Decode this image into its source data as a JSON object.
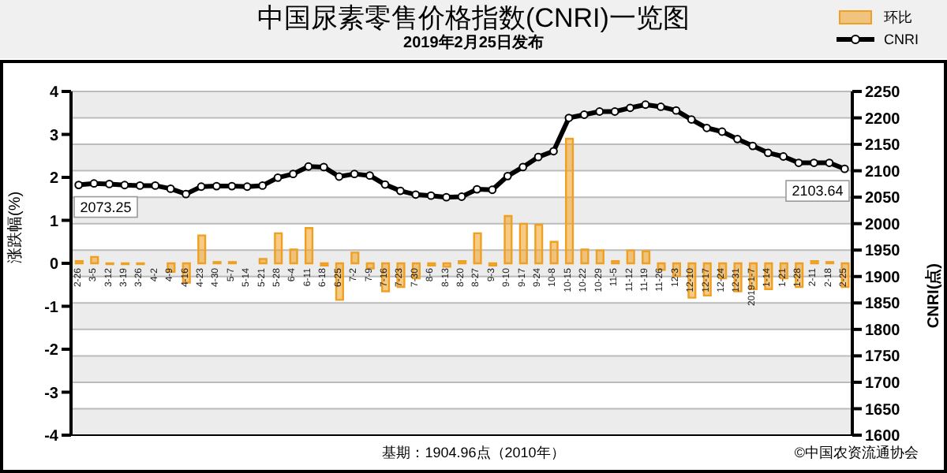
{
  "chart_data": {
    "type": "bar",
    "title": "中国尿素零售价格指数(CNRI)一览图",
    "subtitle": "2019年2月25日发布",
    "ylabel": "涨跌幅(%)",
    "y2label": "CNRI(点)",
    "categories": [
      "2-26",
      "3-5",
      "3-12",
      "3-19",
      "3-26",
      "4-2",
      "4-9",
      "4-16",
      "4-23",
      "4-30",
      "5-7",
      "5-14",
      "5-21",
      "5-28",
      "6-4",
      "6-11",
      "6-18",
      "6-25",
      "7-2",
      "7-9",
      "7-16",
      "7-23",
      "7-30",
      "8-6",
      "8-13",
      "8-20",
      "8-27",
      "9-3",
      "9-10",
      "9-17",
      "9-24",
      "10-8",
      "10-15",
      "10-22",
      "10-29",
      "11-5",
      "11-12",
      "11-19",
      "11-26",
      "12-3",
      "12-10",
      "12-17",
      "12-24",
      "12-31",
      "2019-1-7",
      "1-14",
      "1-21",
      "1-28",
      "2-11",
      "2-18",
      "2-25"
    ],
    "series": [
      {
        "name": "环比",
        "color": "#f0a020",
        "values": [
          0.05,
          0.15,
          -0.02,
          -0.02,
          -0.02,
          0,
          -0.2,
          -0.45,
          0.65,
          0.03,
          0.03,
          0,
          0.1,
          0.7,
          0.32,
          0.82,
          -0.05,
          -0.85,
          0.25,
          -0.12,
          -0.65,
          -0.55,
          -0.35,
          -0.05,
          -0.08,
          0.05,
          0.7,
          -0.05,
          1.1,
          0.92,
          0.9,
          0.5,
          2.9,
          0.32,
          0.3,
          0.05,
          0.3,
          0.28,
          -0.15,
          -0.3,
          -0.8,
          -0.75,
          -0.35,
          -0.65,
          -0.6,
          -0.6,
          -0.35,
          -0.55,
          0.05,
          0.03,
          -0.55
        ]
      },
      {
        "name": "CNRI",
        "type": "line",
        "axis": "y2",
        "color": "#000000",
        "values": [
          2073.25,
          2076,
          2075,
          2073,
          2072,
          2072,
          2066,
          2056,
          2070,
          2071,
          2071,
          2070,
          2072,
          2087,
          2094,
          2108,
          2107,
          2089,
          2094,
          2091,
          2074,
          2062,
          2055,
          2053,
          2050,
          2051,
          2065,
          2064,
          2090,
          2107,
          2126,
          2137,
          2200,
          2206,
          2212,
          2212,
          2219,
          2225,
          2221,
          2214,
          2197,
          2181,
          2174,
          2160,
          2147,
          2134,
          2127,
          2115,
          2115,
          2115,
          2103.64
        ],
        "value_labels": [
          "2073.25",
          null,
          null,
          null,
          null,
          null,
          null,
          null,
          null,
          null,
          null,
          null,
          null,
          null,
          null,
          null,
          null,
          null,
          null,
          null,
          null,
          null,
          null,
          null,
          null,
          null,
          null,
          null,
          null,
          null,
          null,
          null,
          null,
          null,
          null,
          null,
          null,
          null,
          null,
          null,
          null,
          null,
          null,
          null,
          null,
          null,
          null,
          null,
          null,
          null,
          "2103.64"
        ]
      }
    ],
    "ylim": [
      -4,
      4
    ],
    "yticks": [
      -4,
      -3,
      -2,
      -1,
      0,
      1,
      2,
      3,
      4
    ],
    "y2lim": [
      1600,
      2250
    ],
    "y2ticks": [
      1600,
      1650,
      1700,
      1750,
      1800,
      1850,
      1900,
      1950,
      2000,
      2050,
      2100,
      2150,
      2200,
      2250
    ],
    "grid": "y",
    "legend": "top right",
    "marker": "circle",
    "annotations": [
      "基期：1904.96点（2010年）",
      "©中国农资流通协会"
    ]
  }
}
